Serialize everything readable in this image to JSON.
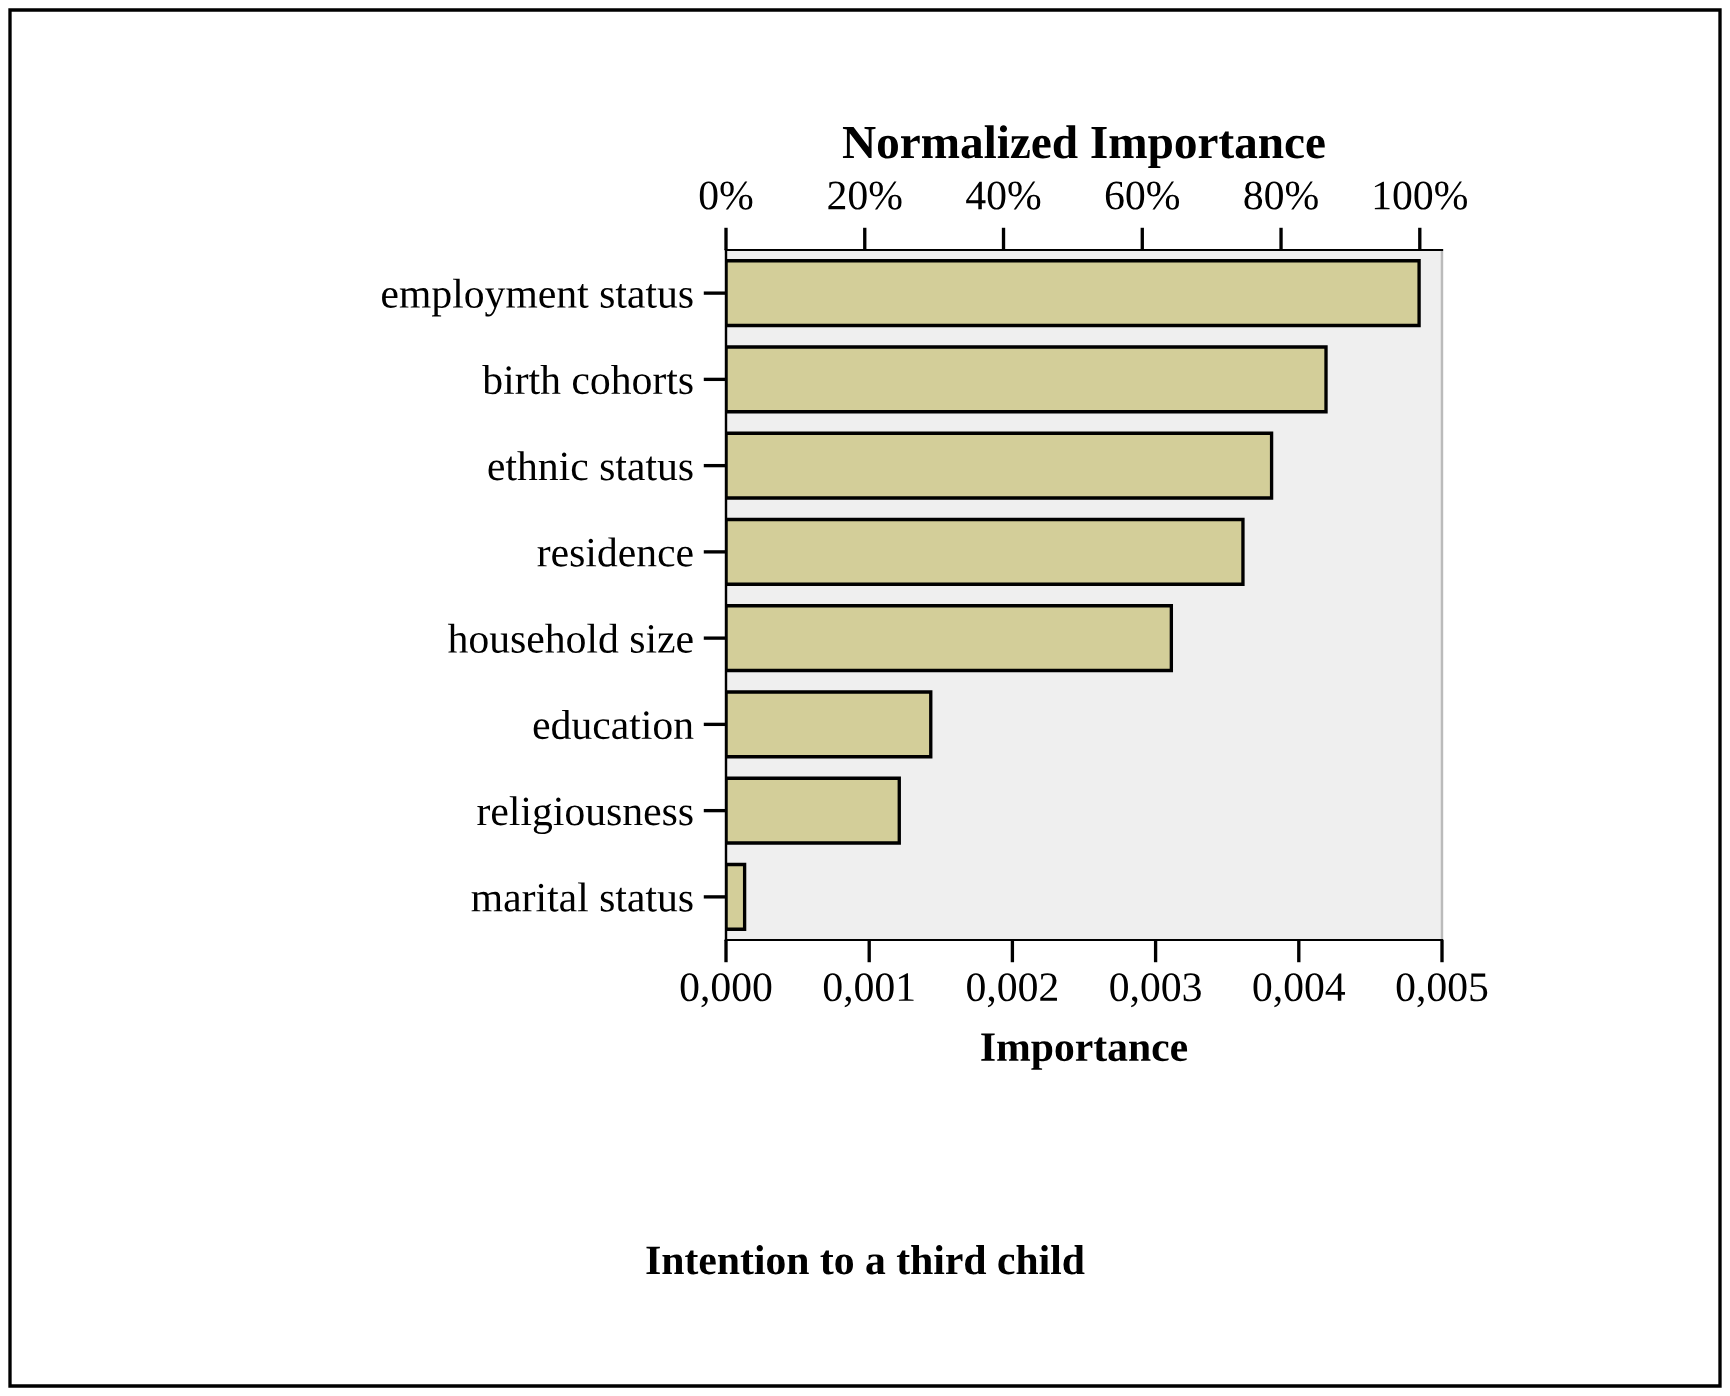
{
  "chart_data": {
    "type": "bar",
    "orientation": "horizontal",
    "categories": [
      "employment status",
      "birth cohorts",
      "ethnic status",
      "residence",
      "household size",
      "education",
      "religiousness",
      "marital status"
    ],
    "values": [
      0.00484,
      0.00419,
      0.00381,
      0.00361,
      0.00311,
      0.00143,
      0.00121,
      0.00013
    ],
    "color": "#d3ce99",
    "xlim": [
      0,
      0.005
    ],
    "xticks": [
      {
        "value": 0,
        "label": "0,000"
      },
      {
        "value": 0.001,
        "label": "0,001"
      },
      {
        "value": 0.002,
        "label": "0,002"
      },
      {
        "value": 0.003,
        "label": "0,003"
      },
      {
        "value": 0.004,
        "label": "0,004"
      },
      {
        "value": 0.005,
        "label": "0,005"
      }
    ],
    "x2lim": [
      0,
      103.2
    ],
    "x2ticks": [
      {
        "value": 0,
        "label": "0%"
      },
      {
        "value": 20,
        "label": "20%"
      },
      {
        "value": 40,
        "label": "40%"
      },
      {
        "value": 60,
        "label": "60%"
      },
      {
        "value": 80,
        "label": "80%"
      },
      {
        "value": 100,
        "label": "100%"
      }
    ],
    "x2label": "Normalized Importance",
    "xlabel": "Importance",
    "annotations": [
      "Intention to a third child"
    ],
    "grid": false
  }
}
